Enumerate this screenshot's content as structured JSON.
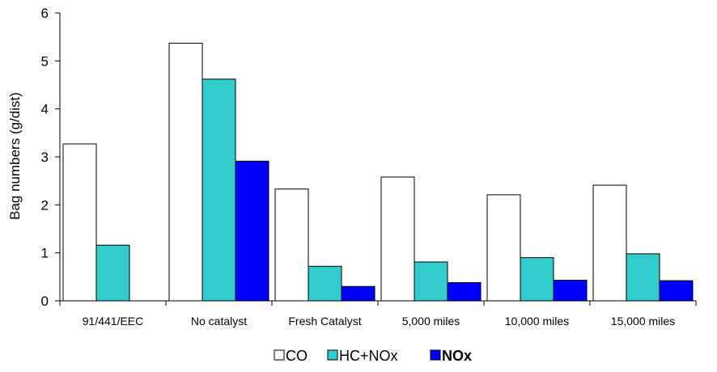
{
  "chart_data": {
    "type": "bar",
    "title": "",
    "xlabel": "",
    "ylabel": "Bag numbers (g/dist)",
    "ylim": [
      0,
      6
    ],
    "yticks": [
      0,
      1,
      2,
      3,
      4,
      5,
      6
    ],
    "grid": false,
    "legend_position": "bottom",
    "categories": [
      "91/441/EEC",
      "No catalyst",
      "Fresh Catalyst",
      "5,000 miles",
      "10,000 miles",
      "15,000 miles"
    ],
    "series": [
      {
        "name": "CO",
        "color": "#ffffff",
        "values": [
          3.27,
          5.37,
          2.33,
          2.58,
          2.21,
          2.41
        ]
      },
      {
        "name": "HC+NOx",
        "color": "#33cccc",
        "values": [
          1.16,
          4.62,
          0.72,
          0.81,
          0.9,
          0.98
        ]
      },
      {
        "name": "NOx",
        "color": "#0000ff",
        "values": [
          null,
          2.91,
          0.3,
          0.38,
          0.43,
          0.42
        ]
      }
    ]
  }
}
